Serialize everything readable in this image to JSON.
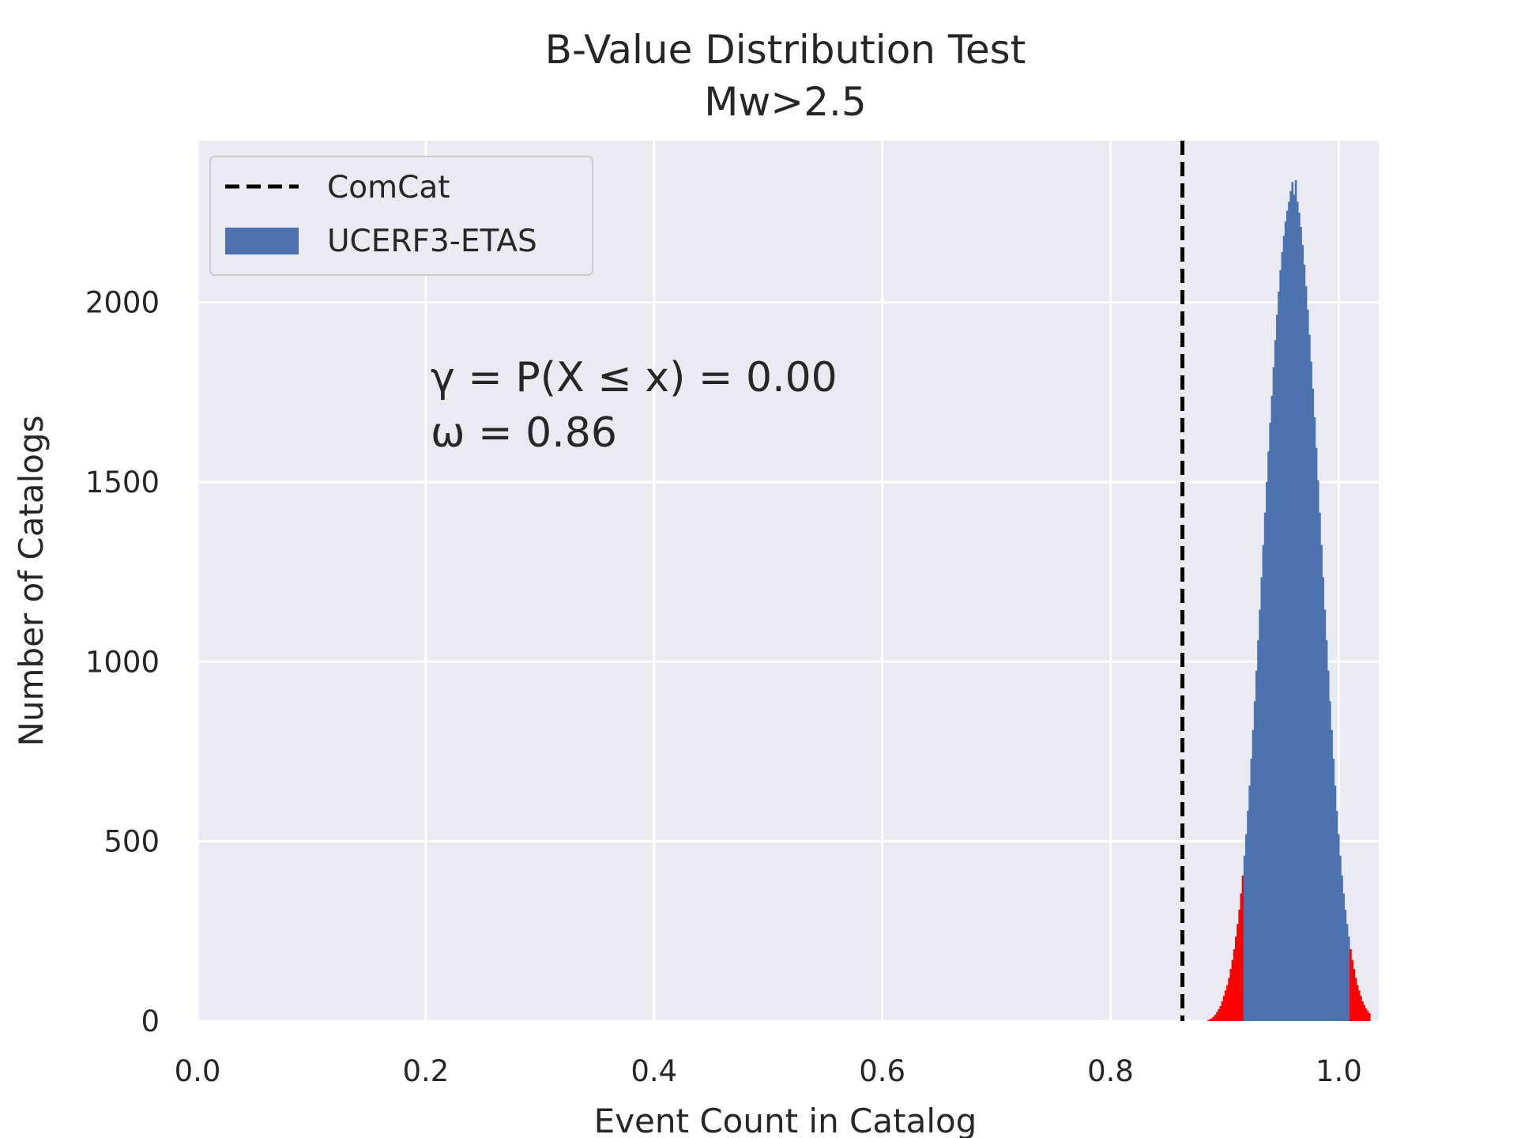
{
  "chart_data": {
    "type": "bar",
    "title": "B-Value Distribution Test",
    "subtitle": "Mw>2.5",
    "xlabel": "Event Count in Catalog",
    "ylabel": "Number of Catalogs",
    "xlim": [
      0.0,
      1.035
    ],
    "ylim": [
      0,
      2450
    ],
    "xticks": [
      "0.0",
      "0.2",
      "0.4",
      "0.6",
      "0.8",
      "1.0"
    ],
    "yticks": [
      "0",
      "500",
      "1000",
      "1500",
      "2000"
    ],
    "grid": true,
    "legend": {
      "placement": "top-left",
      "entries": [
        {
          "label": "ComCat",
          "style": "dashed-line",
          "color": "#000000"
        },
        {
          "label": "UCERF3-ETAS",
          "style": "patch",
          "color": "#4c72b0"
        }
      ]
    },
    "observed_value": {
      "name": "ComCat",
      "x": 0.863
    },
    "annotation": {
      "line1": "γ = P(X ≤ x) = 0.00",
      "line2": "ω = 0.86"
    },
    "histogram": {
      "series_name": "UCERF3-ETAS",
      "bin_start": 0.885,
      "bin_width": 0.0015,
      "counts": [
        3,
        5,
        8,
        12,
        18,
        25,
        33,
        42,
        55,
        70,
        85,
        100,
        120,
        145,
        170,
        200,
        235,
        270,
        310,
        355,
        405,
        460,
        520,
        585,
        655,
        730,
        810,
        890,
        975,
        1060,
        1145,
        1235,
        1325,
        1415,
        1500,
        1585,
        1665,
        1740,
        1820,
        1895,
        1965,
        2030,
        2090,
        2140,
        2185,
        2225,
        2255,
        2280,
        2310,
        2335,
        2300,
        2340,
        2280,
        2250,
        2210,
        2160,
        2105,
        2045,
        1980,
        1910,
        1835,
        1760,
        1680,
        1595,
        1505,
        1415,
        1325,
        1235,
        1145,
        1060,
        975,
        890,
        810,
        730,
        655,
        585,
        520,
        460,
        405,
        355,
        310,
        270,
        235,
        200,
        170,
        145,
        120,
        100,
        85,
        70,
        55,
        45,
        35,
        28,
        22
      ],
      "highlight_below": 0.917,
      "highlight_above": 1.01,
      "bar_color": "#4c72b0",
      "tail_color": "#ff0000"
    }
  }
}
